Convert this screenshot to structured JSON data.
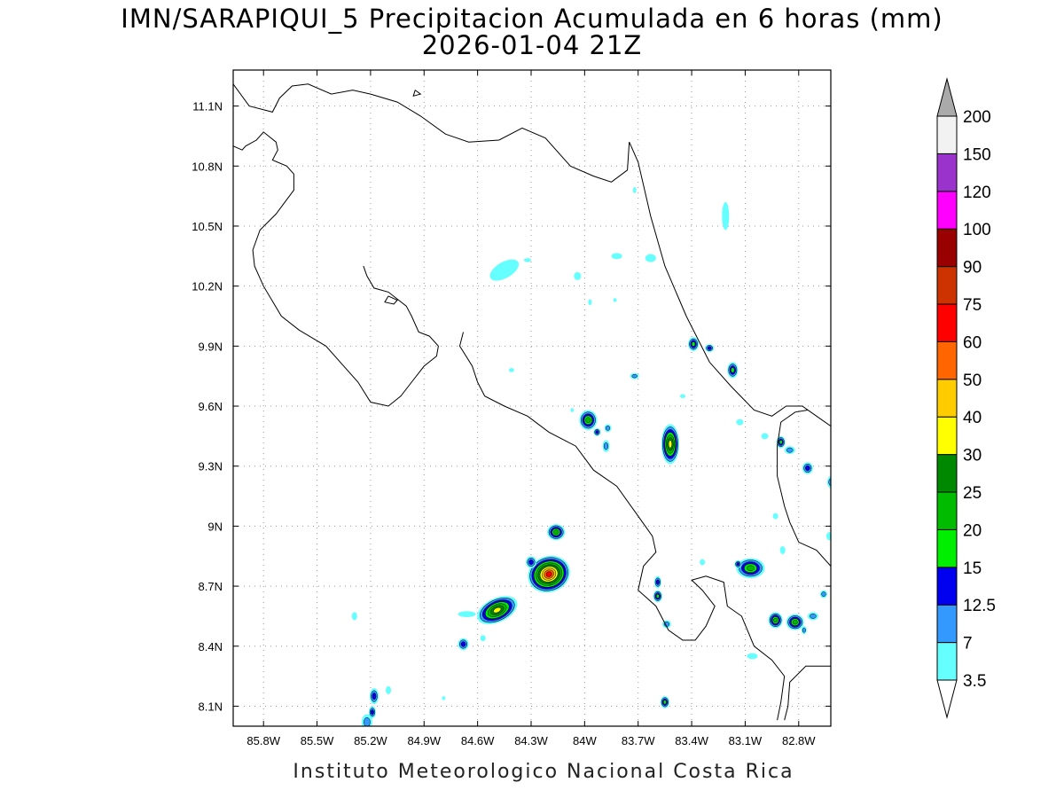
{
  "title": {
    "line1": "IMN/SARAPIQUI_5 Precipitacion Acumulada en 6 horas (mm)",
    "line2": "2026-01-04 21Z"
  },
  "footer": "Instituto Meteorologico Nacional Costa Rica",
  "axes": {
    "x_range": [
      -85.97,
      -82.62
    ],
    "y_range": [
      8.0,
      11.28
    ],
    "x_ticks": [
      {
        "value": -85.8,
        "label": "85.8W"
      },
      {
        "value": -85.5,
        "label": "85.5W"
      },
      {
        "value": -85.2,
        "label": "85.2W"
      },
      {
        "value": -84.9,
        "label": "84.9W"
      },
      {
        "value": -84.6,
        "label": "84.6W"
      },
      {
        "value": -84.3,
        "label": "84.3W"
      },
      {
        "value": -84.0,
        "label": "84W"
      },
      {
        "value": -83.7,
        "label": "83.7W"
      },
      {
        "value": -83.4,
        "label": "83.4W"
      },
      {
        "value": -83.1,
        "label": "83.1W"
      },
      {
        "value": -82.8,
        "label": "82.8W"
      }
    ],
    "y_ticks": [
      {
        "value": 8.1,
        "label": "8.1N"
      },
      {
        "value": 8.4,
        "label": "8.4N"
      },
      {
        "value": 8.7,
        "label": "8.7N"
      },
      {
        "value": 9.0,
        "label": "9N"
      },
      {
        "value": 9.3,
        "label": "9.3N"
      },
      {
        "value": 9.6,
        "label": "9.6N"
      },
      {
        "value": 9.9,
        "label": "9.9N"
      },
      {
        "value": 10.2,
        "label": "10.2N"
      },
      {
        "value": 10.5,
        "label": "10.5N"
      },
      {
        "value": 10.8,
        "label": "10.8N"
      },
      {
        "value": 11.1,
        "label": "11.1N"
      }
    ],
    "grid": "dotted"
  },
  "colorbar": {
    "levels": [
      "3.5",
      "7",
      "12.5",
      "15",
      "20",
      "25",
      "30",
      "40",
      "50",
      "60",
      "75",
      "90",
      "100",
      "120",
      "150",
      "200"
    ],
    "colors": [
      "#ffffff",
      "#66ffff",
      "#3399ff",
      "#0000ee",
      "#00ee00",
      "#00bb00",
      "#008800",
      "#ffff00",
      "#ffcc00",
      "#ff6600",
      "#ff0000",
      "#cc3300",
      "#990000",
      "#ff00ff",
      "#9933cc",
      "#f2f2f2",
      "#aaaaaa"
    ]
  },
  "coastlines": [
    [
      [
        -85.97,
        11.21
      ],
      [
        -85.88,
        11.1
      ],
      [
        -85.75,
        11.07
      ],
      [
        -85.71,
        11.14
      ],
      [
        -85.64,
        11.2
      ],
      [
        -85.55,
        11.21
      ],
      [
        -85.42,
        11.16
      ],
      [
        -85.3,
        11.18
      ],
      [
        -85.2,
        11.16
      ],
      [
        -85.05,
        11.12
      ],
      [
        -84.92,
        11.05
      ],
      [
        -84.78,
        10.96
      ],
      [
        -84.65,
        10.92
      ],
      [
        -84.48,
        10.93
      ],
      [
        -84.35,
        10.99
      ],
      [
        -84.22,
        10.94
      ],
      [
        -84.08,
        10.8
      ],
      [
        -83.95,
        10.75
      ],
      [
        -83.85,
        10.72
      ],
      [
        -83.76,
        10.78
      ],
      [
        -83.75,
        10.92
      ],
      [
        -83.7,
        10.82
      ],
      [
        -83.63,
        10.55
      ],
      [
        -83.55,
        10.3
      ],
      [
        -83.43,
        10.05
      ],
      [
        -83.3,
        9.82
      ],
      [
        -83.18,
        9.7
      ],
      [
        -83.05,
        9.58
      ],
      [
        -82.95,
        9.55
      ],
      [
        -82.87,
        9.6
      ],
      [
        -82.78,
        9.6
      ],
      [
        -82.7,
        9.55
      ],
      [
        -82.62,
        9.5
      ]
    ],
    [
      [
        -85.97,
        10.9
      ],
      [
        -85.92,
        10.88
      ],
      [
        -85.9,
        10.9
      ],
      [
        -85.84,
        10.93
      ],
      [
        -85.8,
        10.97
      ],
      [
        -85.73,
        10.92
      ],
      [
        -85.72,
        10.88
      ],
      [
        -85.75,
        10.83
      ],
      [
        -85.67,
        10.8
      ],
      [
        -85.63,
        10.76
      ],
      [
        -85.63,
        10.68
      ],
      [
        -85.68,
        10.62
      ],
      [
        -85.73,
        10.56
      ],
      [
        -85.82,
        10.48
      ],
      [
        -85.86,
        10.38
      ],
      [
        -85.85,
        10.3
      ],
      [
        -85.8,
        10.2
      ],
      [
        -85.7,
        10.05
      ],
      [
        -85.6,
        9.98
      ],
      [
        -85.45,
        9.9
      ],
      [
        -85.35,
        9.8
      ],
      [
        -85.27,
        9.72
      ],
      [
        -85.2,
        9.62
      ],
      [
        -85.1,
        9.6
      ],
      [
        -85.03,
        9.65
      ],
      [
        -84.97,
        9.72
      ],
      [
        -84.9,
        9.8
      ],
      [
        -84.83,
        9.85
      ],
      [
        -84.82,
        9.9
      ],
      [
        -84.87,
        9.95
      ],
      [
        -84.93,
        9.97
      ],
      [
        -84.97,
        10.05
      ],
      [
        -85.0,
        10.1
      ],
      [
        -85.1,
        10.17
      ],
      [
        -85.18,
        10.19
      ],
      [
        -85.22,
        10.25
      ],
      [
        -85.24,
        10.3
      ]
    ],
    [
      [
        -84.68,
        9.97
      ],
      [
        -84.7,
        9.9
      ],
      [
        -84.63,
        9.8
      ],
      [
        -84.6,
        9.72
      ],
      [
        -84.56,
        9.65
      ],
      [
        -84.45,
        9.6
      ],
      [
        -84.32,
        9.55
      ],
      [
        -84.2,
        9.47
      ],
      [
        -84.05,
        9.4
      ],
      [
        -83.95,
        9.28
      ],
      [
        -83.82,
        9.2
      ],
      [
        -83.7,
        9.05
      ],
      [
        -83.62,
        8.95
      ],
      [
        -83.6,
        8.87
      ],
      [
        -83.67,
        8.8
      ],
      [
        -83.7,
        8.68
      ],
      [
        -83.6,
        8.6
      ],
      [
        -83.53,
        8.48
      ],
      [
        -83.45,
        8.43
      ],
      [
        -83.38,
        8.43
      ],
      [
        -83.32,
        8.5
      ],
      [
        -83.27,
        8.6
      ],
      [
        -83.34,
        8.68
      ],
      [
        -83.4,
        8.73
      ],
      [
        -83.32,
        8.75
      ],
      [
        -83.22,
        8.72
      ],
      [
        -83.2,
        8.6
      ],
      [
        -83.12,
        8.55
      ],
      [
        -83.05,
        8.4
      ],
      [
        -82.95,
        8.33
      ],
      [
        -82.88,
        8.25
      ],
      [
        -82.9,
        8.12
      ],
      [
        -82.92,
        8.03
      ]
    ],
    [
      [
        -82.88,
        8.03
      ],
      [
        -82.86,
        8.1
      ],
      [
        -82.85,
        8.22
      ],
      [
        -82.76,
        8.3
      ],
      [
        -82.7,
        8.3
      ],
      [
        -82.62,
        8.3
      ]
    ],
    [
      [
        -82.62,
        8.8
      ],
      [
        -82.7,
        8.88
      ],
      [
        -82.8,
        8.92
      ],
      [
        -82.85,
        9.02
      ],
      [
        -82.88,
        9.1
      ],
      [
        -82.92,
        9.25
      ],
      [
        -82.92,
        9.4
      ],
      [
        -82.9,
        9.52
      ],
      [
        -82.82,
        9.57
      ],
      [
        -82.75,
        9.58
      ]
    ]
  ],
  "lakes": [
    [
      [
        -85.1,
        10.15
      ],
      [
        -85.05,
        10.13
      ],
      [
        -85.07,
        10.11
      ],
      [
        -85.12,
        10.12
      ],
      [
        -85.1,
        10.15
      ]
    ],
    [
      [
        -84.95,
        11.18
      ],
      [
        -84.92,
        11.16
      ],
      [
        -84.96,
        11.15
      ],
      [
        -84.95,
        11.18
      ]
    ]
  ],
  "precip_cells": [
    {
      "lon": -84.2,
      "lat": 8.76,
      "rx": 0.12,
      "ry": 0.09,
      "rot": -20,
      "level": 10
    },
    {
      "lon": -84.49,
      "lat": 8.58,
      "rx": 0.12,
      "ry": 0.06,
      "rot": -25,
      "level": 7
    },
    {
      "lon": -84.3,
      "lat": 8.82,
      "rx": 0.03,
      "ry": 0.03,
      "rot": 0,
      "level": 3
    },
    {
      "lon": -84.16,
      "lat": 8.97,
      "rx": 0.05,
      "ry": 0.04,
      "rot": 0,
      "level": 5
    },
    {
      "lon": -84.66,
      "lat": 8.56,
      "rx": 0.05,
      "ry": 0.015,
      "rot": 0,
      "level": 1
    },
    {
      "lon": -84.57,
      "lat": 8.44,
      "rx": 0.015,
      "ry": 0.015,
      "rot": 0,
      "level": 1
    },
    {
      "lon": -84.68,
      "lat": 8.41,
      "rx": 0.03,
      "ry": 0.03,
      "rot": 0,
      "level": 3
    },
    {
      "lon": -83.52,
      "lat": 9.41,
      "rx": 0.05,
      "ry": 0.1,
      "rot": 0,
      "level": 7
    },
    {
      "lon": -83.98,
      "lat": 9.53,
      "rx": 0.05,
      "ry": 0.05,
      "rot": 0,
      "level": 5
    },
    {
      "lon": -83.93,
      "lat": 9.47,
      "rx": 0.02,
      "ry": 0.02,
      "rot": 0,
      "level": 3
    },
    {
      "lon": -83.87,
      "lat": 9.49,
      "rx": 0.02,
      "ry": 0.02,
      "rot": 0,
      "level": 2
    },
    {
      "lon": -83.88,
      "lat": 9.4,
      "rx": 0.02,
      "ry": 0.03,
      "rot": 0,
      "level": 2
    },
    {
      "lon": -83.39,
      "lat": 9.91,
      "rx": 0.03,
      "ry": 0.035,
      "rot": 0,
      "level": 4
    },
    {
      "lon": -83.3,
      "lat": 9.89,
      "rx": 0.025,
      "ry": 0.02,
      "rot": 0,
      "level": 3
    },
    {
      "lon": -83.17,
      "lat": 9.78,
      "rx": 0.03,
      "ry": 0.04,
      "rot": 0,
      "level": 4
    },
    {
      "lon": -83.72,
      "lat": 9.75,
      "rx": 0.025,
      "ry": 0.015,
      "rot": 0,
      "level": 2
    },
    {
      "lon": -83.07,
      "lat": 8.79,
      "rx": 0.08,
      "ry": 0.05,
      "rot": 0,
      "level": 5
    },
    {
      "lon": -82.93,
      "lat": 8.53,
      "rx": 0.04,
      "ry": 0.04,
      "rot": 0,
      "level": 5
    },
    {
      "lon": -82.82,
      "lat": 8.52,
      "rx": 0.05,
      "ry": 0.04,
      "rot": 0,
      "level": 5
    },
    {
      "lon": -82.72,
      "lat": 8.55,
      "rx": 0.03,
      "ry": 0.02,
      "rot": 0,
      "level": 2
    },
    {
      "lon": -82.66,
      "lat": 8.66,
      "rx": 0.02,
      "ry": 0.02,
      "rot": 0,
      "level": 2
    },
    {
      "lon": -82.77,
      "lat": 8.48,
      "rx": 0.015,
      "ry": 0.02,
      "rot": 0,
      "level": 2
    },
    {
      "lon": -83.14,
      "lat": 8.81,
      "rx": 0.02,
      "ry": 0.02,
      "rot": 0,
      "level": 3
    },
    {
      "lon": -82.9,
      "lat": 9.42,
      "rx": 0.025,
      "ry": 0.03,
      "rot": 0,
      "level": 4
    },
    {
      "lon": -82.85,
      "lat": 9.38,
      "rx": 0.03,
      "ry": 0.02,
      "rot": 0,
      "level": 2
    },
    {
      "lon": -82.75,
      "lat": 9.29,
      "rx": 0.03,
      "ry": 0.03,
      "rot": 0,
      "level": 3
    },
    {
      "lon": -82.62,
      "lat": 9.22,
      "rx": 0.02,
      "ry": 0.03,
      "rot": 0,
      "level": 2
    },
    {
      "lon": -83.59,
      "lat": 8.72,
      "rx": 0.02,
      "ry": 0.03,
      "rot": 0,
      "level": 3
    },
    {
      "lon": -83.59,
      "lat": 8.65,
      "rx": 0.025,
      "ry": 0.03,
      "rot": 0,
      "level": 4
    },
    {
      "lon": -83.54,
      "lat": 8.51,
      "rx": 0.025,
      "ry": 0.02,
      "rot": 0,
      "level": 2
    },
    {
      "lon": -83.55,
      "lat": 8.12,
      "rx": 0.025,
      "ry": 0.03,
      "rot": 0,
      "level": 4
    },
    {
      "lon": -83.21,
      "lat": 10.55,
      "rx": 0.02,
      "ry": 0.07,
      "rot": 0,
      "level": 1
    },
    {
      "lon": -84.45,
      "lat": 10.28,
      "rx": 0.09,
      "ry": 0.04,
      "rot": -30,
      "level": 1
    },
    {
      "lon": -84.32,
      "lat": 10.33,
      "rx": 0.02,
      "ry": 0.01,
      "rot": 0,
      "level": 1
    },
    {
      "lon": -84.04,
      "lat": 10.25,
      "rx": 0.02,
      "ry": 0.02,
      "rot": 0,
      "level": 1
    },
    {
      "lon": -83.82,
      "lat": 10.35,
      "rx": 0.03,
      "ry": 0.015,
      "rot": 0,
      "level": 1
    },
    {
      "lon": -83.63,
      "lat": 10.34,
      "rx": 0.03,
      "ry": 0.02,
      "rot": 0,
      "level": 1
    },
    {
      "lon": -83.97,
      "lat": 10.12,
      "rx": 0.01,
      "ry": 0.015,
      "rot": 0,
      "level": 1
    },
    {
      "lon": -83.83,
      "lat": 10.13,
      "rx": 0.01,
      "ry": 0.01,
      "rot": 0,
      "level": 1
    },
    {
      "lon": -85.18,
      "lat": 8.15,
      "rx": 0.025,
      "ry": 0.04,
      "rot": 0,
      "level": 3
    },
    {
      "lon": -85.19,
      "lat": 8.07,
      "rx": 0.02,
      "ry": 0.03,
      "rot": 0,
      "level": 3
    },
    {
      "lon": -85.22,
      "lat": 8.02,
      "rx": 0.03,
      "ry": 0.04,
      "rot": 0,
      "level": 2
    },
    {
      "lon": -85.1,
      "lat": 8.18,
      "rx": 0.015,
      "ry": 0.02,
      "rot": 0,
      "level": 1
    },
    {
      "lon": -85.29,
      "lat": 8.55,
      "rx": 0.015,
      "ry": 0.02,
      "rot": 0,
      "level": 1
    },
    {
      "lon": -84.79,
      "lat": 8.14,
      "rx": 0.01,
      "ry": 0.01,
      "rot": 0,
      "level": 1
    },
    {
      "lon": -83.72,
      "lat": 10.68,
      "rx": 0.01,
      "ry": 0.015,
      "rot": 0,
      "level": 1
    },
    {
      "lon": -83.45,
      "lat": 9.65,
      "rx": 0.015,
      "ry": 0.01,
      "rot": 0,
      "level": 1
    },
    {
      "lon": -83.13,
      "lat": 9.52,
      "rx": 0.02,
      "ry": 0.015,
      "rot": 0,
      "level": 1
    },
    {
      "lon": -82.99,
      "lat": 9.45,
      "rx": 0.02,
      "ry": 0.015,
      "rot": 0,
      "level": 1
    },
    {
      "lon": -82.93,
      "lat": 9.05,
      "rx": 0.015,
      "ry": 0.015,
      "rot": 0,
      "level": 1
    },
    {
      "lon": -82.63,
      "lat": 8.95,
      "rx": 0.015,
      "ry": 0.02,
      "rot": 0,
      "level": 1
    },
    {
      "lon": -83.34,
      "lat": 8.82,
      "rx": 0.015,
      "ry": 0.015,
      "rot": 0,
      "level": 1
    },
    {
      "lon": -83.06,
      "lat": 8.35,
      "rx": 0.03,
      "ry": 0.015,
      "rot": 0,
      "level": 1
    },
    {
      "lon": -82.89,
      "lat": 8.88,
      "rx": 0.015,
      "ry": 0.02,
      "rot": 0,
      "level": 1
    },
    {
      "lon": -84.07,
      "lat": 9.58,
      "rx": 0.01,
      "ry": 0.01,
      "rot": 0,
      "level": 1
    },
    {
      "lon": -84.41,
      "lat": 9.78,
      "rx": 0.015,
      "ry": 0.01,
      "rot": 0,
      "level": 1
    }
  ]
}
